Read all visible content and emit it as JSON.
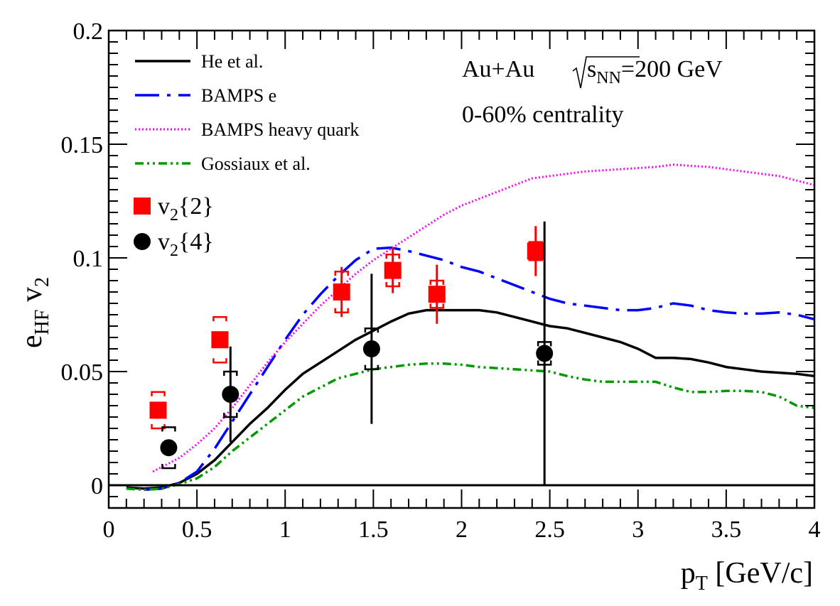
{
  "chart_data": {
    "type": "scatter",
    "xlabel_main": "p",
    "xlabel_sub": "T",
    "xlabel_rest": " [GeV/c]",
    "ylabel_main": "e",
    "ylabel_sub": "HF",
    "ylabel_rest_main": " v",
    "ylabel_rest_sub": "2",
    "xlim": [
      0,
      4
    ],
    "ylim": [
      -0.01,
      0.2
    ],
    "x_ticks": [
      "0",
      "0.5",
      "1",
      "1.5",
      "2",
      "2.5",
      "3",
      "3.5",
      "4"
    ],
    "y_ticks": [
      "0",
      "0.05",
      "0.1",
      "0.15",
      "0.2"
    ],
    "annotation": {
      "line1_prefix": "Au+Au ",
      "line1_s": "s",
      "line1_sub": "NN",
      "line1_suffix": "=200 GeV",
      "line2": "0-60% centrality"
    },
    "curves": [
      {
        "name": "He et al.",
        "color": "#000000",
        "style": "solid",
        "points": [
          [
            0.1,
            -0.001
          ],
          [
            0.2,
            -0.0015
          ],
          [
            0.3,
            -0.001
          ],
          [
            0.4,
            0.001
          ],
          [
            0.5,
            0.005
          ],
          [
            0.6,
            0.011
          ],
          [
            0.7,
            0.019
          ],
          [
            0.8,
            0.027
          ],
          [
            0.9,
            0.034
          ],
          [
            1.0,
            0.042
          ],
          [
            1.1,
            0.049
          ],
          [
            1.2,
            0.054
          ],
          [
            1.3,
            0.059
          ],
          [
            1.4,
            0.064
          ],
          [
            1.5,
            0.068
          ],
          [
            1.6,
            0.072
          ],
          [
            1.7,
            0.0755
          ],
          [
            1.8,
            0.077
          ],
          [
            1.9,
            0.077
          ],
          [
            2.0,
            0.077
          ],
          [
            2.1,
            0.077
          ],
          [
            2.2,
            0.076
          ],
          [
            2.3,
            0.074
          ],
          [
            2.4,
            0.072
          ],
          [
            2.5,
            0.07
          ],
          [
            2.6,
            0.069
          ],
          [
            2.7,
            0.067
          ],
          [
            2.8,
            0.065
          ],
          [
            2.9,
            0.063
          ],
          [
            3.0,
            0.06
          ],
          [
            3.1,
            0.056
          ],
          [
            3.2,
            0.056
          ],
          [
            3.3,
            0.0555
          ],
          [
            3.4,
            0.054
          ],
          [
            3.5,
            0.052
          ],
          [
            3.6,
            0.051
          ],
          [
            3.7,
            0.05
          ],
          [
            3.8,
            0.0495
          ],
          [
            3.9,
            0.049
          ],
          [
            4.0,
            0.048
          ]
        ]
      },
      {
        "name": "BAMPS e",
        "color": "#0000ff",
        "style": "dashdot",
        "points": [
          [
            0.2,
            -0.002
          ],
          [
            0.3,
            -0.0015
          ],
          [
            0.4,
            0.001
          ],
          [
            0.5,
            0.006
          ],
          [
            0.6,
            0.016
          ],
          [
            0.7,
            0.028
          ],
          [
            0.8,
            0.04
          ],
          [
            0.9,
            0.052
          ],
          [
            1.0,
            0.064
          ],
          [
            1.1,
            0.075
          ],
          [
            1.2,
            0.084
          ],
          [
            1.3,
            0.092
          ],
          [
            1.4,
            0.099
          ],
          [
            1.5,
            0.104
          ],
          [
            1.6,
            0.1045
          ],
          [
            1.7,
            0.103
          ],
          [
            1.8,
            0.101
          ],
          [
            1.9,
            0.099
          ],
          [
            2.0,
            0.096
          ],
          [
            2.1,
            0.094
          ],
          [
            2.2,
            0.091
          ],
          [
            2.3,
            0.088
          ],
          [
            2.4,
            0.085
          ],
          [
            2.5,
            0.082
          ],
          [
            2.6,
            0.08
          ],
          [
            2.7,
            0.079
          ],
          [
            2.8,
            0.078
          ],
          [
            2.9,
            0.077
          ],
          [
            3.0,
            0.077
          ],
          [
            3.1,
            0.078
          ],
          [
            3.2,
            0.08
          ],
          [
            3.3,
            0.079
          ],
          [
            3.4,
            0.077
          ],
          [
            3.5,
            0.076
          ],
          [
            3.6,
            0.0755
          ],
          [
            3.7,
            0.0755
          ],
          [
            3.8,
            0.076
          ],
          [
            3.9,
            0.075
          ],
          [
            4.0,
            0.073
          ]
        ]
      },
      {
        "name": "BAMPS heavy quark",
        "color": "#ff00ff",
        "style": "dotted",
        "points": [
          [
            0.25,
            0.006
          ],
          [
            0.3,
            0.008
          ],
          [
            0.4,
            0.012
          ],
          [
            0.5,
            0.018
          ],
          [
            0.6,
            0.025
          ],
          [
            0.7,
            0.034
          ],
          [
            0.8,
            0.044
          ],
          [
            0.9,
            0.054
          ],
          [
            1.0,
            0.063
          ],
          [
            1.1,
            0.071
          ],
          [
            1.2,
            0.079
          ],
          [
            1.3,
            0.086
          ],
          [
            1.4,
            0.093
          ],
          [
            1.5,
            0.099
          ],
          [
            1.6,
            0.104
          ],
          [
            1.7,
            0.109
          ],
          [
            1.8,
            0.114
          ],
          [
            1.9,
            0.119
          ],
          [
            2.0,
            0.123
          ],
          [
            2.1,
            0.126
          ],
          [
            2.2,
            0.129
          ],
          [
            2.3,
            0.132
          ],
          [
            2.4,
            0.135
          ],
          [
            2.5,
            0.136
          ],
          [
            2.6,
            0.137
          ],
          [
            2.7,
            0.138
          ],
          [
            2.8,
            0.1385
          ],
          [
            2.9,
            0.139
          ],
          [
            3.0,
            0.1395
          ],
          [
            3.1,
            0.14
          ],
          [
            3.2,
            0.141
          ],
          [
            3.3,
            0.1405
          ],
          [
            3.4,
            0.14
          ],
          [
            3.5,
            0.139
          ],
          [
            3.6,
            0.138
          ],
          [
            3.7,
            0.137
          ],
          [
            3.8,
            0.136
          ],
          [
            3.9,
            0.134
          ],
          [
            4.0,
            0.132
          ]
        ]
      },
      {
        "name": "Gossiaux et al.",
        "color": "#009900",
        "style": "dashdotdot",
        "points": [
          [
            0.1,
            -0.0015
          ],
          [
            0.2,
            -0.002
          ],
          [
            0.3,
            -0.0015
          ],
          [
            0.4,
            0.0005
          ],
          [
            0.5,
            0.003
          ],
          [
            0.6,
            0.008
          ],
          [
            0.7,
            0.015
          ],
          [
            0.8,
            0.021
          ],
          [
            0.9,
            0.027
          ],
          [
            1.0,
            0.033
          ],
          [
            1.1,
            0.039
          ],
          [
            1.2,
            0.043
          ],
          [
            1.3,
            0.047
          ],
          [
            1.4,
            0.049
          ],
          [
            1.5,
            0.051
          ],
          [
            1.6,
            0.052
          ],
          [
            1.7,
            0.053
          ],
          [
            1.8,
            0.0535
          ],
          [
            1.9,
            0.0535
          ],
          [
            2.0,
            0.053
          ],
          [
            2.1,
            0.052
          ],
          [
            2.2,
            0.0515
          ],
          [
            2.3,
            0.051
          ],
          [
            2.4,
            0.0505
          ],
          [
            2.5,
            0.05
          ],
          [
            2.6,
            0.048
          ],
          [
            2.7,
            0.0465
          ],
          [
            2.8,
            0.0455
          ],
          [
            2.9,
            0.0455
          ],
          [
            3.0,
            0.0455
          ],
          [
            3.1,
            0.0455
          ],
          [
            3.2,
            0.043
          ],
          [
            3.3,
            0.041
          ],
          [
            3.4,
            0.041
          ],
          [
            3.5,
            0.0415
          ],
          [
            3.6,
            0.0415
          ],
          [
            3.7,
            0.041
          ],
          [
            3.8,
            0.039
          ],
          [
            3.9,
            0.035
          ],
          [
            4.0,
            0.034
          ]
        ]
      }
    ],
    "markers": [
      {
        "name": "v",
        "name_sub": "2",
        "name_rest": "{2}",
        "color": "#ff0000",
        "shape": "square",
        "points": [
          {
            "x": 0.28,
            "y": 0.033,
            "stat": 0.0,
            "sys": 0.008
          },
          {
            "x": 0.63,
            "y": 0.064,
            "stat": 0.0,
            "sys": 0.01
          },
          {
            "x": 1.32,
            "y": 0.085,
            "stat": 0.011,
            "sys": 0.009
          },
          {
            "x": 1.61,
            "y": 0.0945,
            "stat": 0.01,
            "sys": 0.007
          },
          {
            "x": 1.86,
            "y": 0.084,
            "stat": 0.013,
            "sys": 0.006
          },
          {
            "x": 2.42,
            "y": 0.103,
            "stat": 0.011,
            "sys": 0.004
          }
        ]
      },
      {
        "name": "v",
        "name_sub": "2",
        "name_rest": "{4}",
        "color": "#000000",
        "shape": "circle",
        "points": [
          {
            "x": 0.34,
            "y": 0.0165,
            "stat": 0.0,
            "sys": 0.009
          },
          {
            "x": 0.69,
            "y": 0.04,
            "stat": 0.021,
            "sys": 0.01
          },
          {
            "x": 1.49,
            "y": 0.06,
            "stat": 0.033,
            "sys": 0.009
          },
          {
            "x": 2.47,
            "y": 0.058,
            "stat": 0.058,
            "sys": 0.005
          }
        ]
      }
    ]
  }
}
